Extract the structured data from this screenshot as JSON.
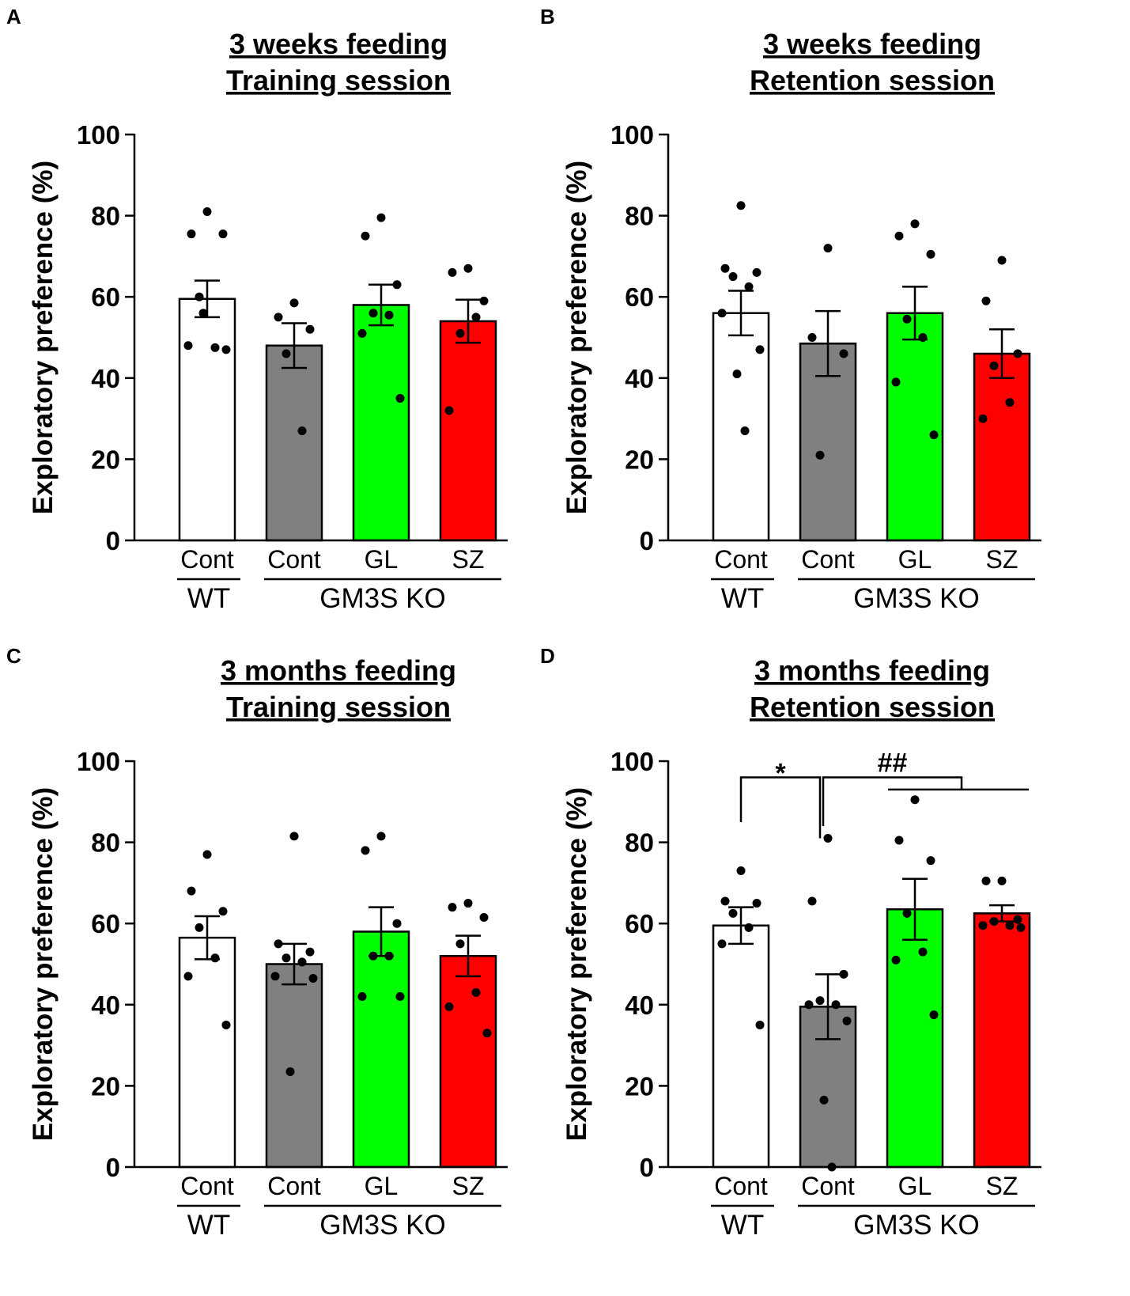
{
  "chart_data": [
    {
      "type": "bar",
      "panel": "A",
      "title": [
        "3 weeks feeding",
        "Training session"
      ],
      "ylabel": "Exploratory preference (%)",
      "ylim": [
        0,
        100
      ],
      "yticks": [
        "0",
        "20",
        "40",
        "60",
        "80",
        "100"
      ],
      "categories": [
        "Cont",
        "Cont",
        "GL",
        "SZ"
      ],
      "groups": [
        {
          "label": "WT",
          "span": [
            0,
            0
          ]
        },
        {
          "label": "GM3S KO",
          "span": [
            1,
            3
          ]
        }
      ],
      "colors": [
        "#ffffff",
        "#808080",
        "#00ff00",
        "#ff0000"
      ],
      "means": [
        59.5,
        48,
        58,
        54
      ],
      "sem": [
        4.5,
        5.5,
        5,
        5.3
      ],
      "points": [
        [
          81,
          75.5,
          75.5,
          60,
          47.5,
          48,
          47,
          56
        ],
        [
          58.5,
          55,
          52,
          46,
          27
        ],
        [
          79.5,
          75,
          63,
          56,
          55.5,
          51,
          35
        ],
        [
          67,
          66,
          59,
          51,
          55,
          32
        ]
      ],
      "annotations": []
    },
    {
      "type": "bar",
      "panel": "B",
      "title": [
        "3 weeks feeding",
        "Retention session"
      ],
      "ylabel": "Exploratory preference (%)",
      "ylim": [
        0,
        100
      ],
      "yticks": [
        "0",
        "20",
        "40",
        "60",
        "80",
        "100"
      ],
      "categories": [
        "Cont",
        "Cont",
        "GL",
        "SZ"
      ],
      "groups": [
        {
          "label": "WT",
          "span": [
            0,
            0
          ]
        },
        {
          "label": "GM3S KO",
          "span": [
            1,
            3
          ]
        }
      ],
      "colors": [
        "#ffffff",
        "#808080",
        "#00ff00",
        "#ff0000"
      ],
      "means": [
        56,
        48.5,
        56,
        46
      ],
      "sem": [
        5.5,
        8,
        6.5,
        6
      ],
      "points": [
        [
          82.5,
          67,
          66,
          65,
          62.5,
          56,
          47,
          41,
          27
        ],
        [
          72,
          50,
          46,
          21
        ],
        [
          78,
          75,
          70.5,
          54.5,
          50,
          39,
          26
        ],
        [
          69,
          59,
          46,
          43,
          34,
          30
        ]
      ],
      "annotations": []
    },
    {
      "type": "bar",
      "panel": "C",
      "title": [
        "3 months feeding",
        "Training session"
      ],
      "ylabel": "Exploratory preference (%)",
      "ylim": [
        0,
        100
      ],
      "yticks": [
        "0",
        "20",
        "40",
        "60",
        "80",
        "100"
      ],
      "categories": [
        "Cont",
        "Cont",
        "GL",
        "SZ"
      ],
      "groups": [
        {
          "label": "WT",
          "span": [
            0,
            0
          ]
        },
        {
          "label": "GM3S KO",
          "span": [
            1,
            3
          ]
        }
      ],
      "colors": [
        "#ffffff",
        "#808080",
        "#00ff00",
        "#ff0000"
      ],
      "means": [
        56.5,
        50,
        58,
        52
      ],
      "sem": [
        5.3,
        5,
        6,
        5
      ],
      "points": [
        [
          77,
          68,
          63,
          59,
          51.5,
          47,
          35
        ],
        [
          81.5,
          55,
          53,
          51.5,
          50.5,
          47,
          46.5,
          23.5
        ],
        [
          81.5,
          78,
          60,
          52,
          52,
          42,
          42
        ],
        [
          65,
          64,
          61.5,
          55,
          43,
          39.5,
          33
        ]
      ],
      "annotations": []
    },
    {
      "type": "bar",
      "panel": "D",
      "title": [
        "3 months feeding",
        "Retention session"
      ],
      "ylabel": "Exploratory preference (%)",
      "ylim": [
        0,
        100
      ],
      "yticks": [
        "0",
        "20",
        "40",
        "60",
        "80",
        "100"
      ],
      "categories": [
        "Cont",
        "Cont",
        "GL",
        "SZ"
      ],
      "groups": [
        {
          "label": "WT",
          "span": [
            0,
            0
          ]
        },
        {
          "label": "GM3S KO",
          "span": [
            1,
            3
          ]
        }
      ],
      "colors": [
        "#ffffff",
        "#808080",
        "#00ff00",
        "#ff0000"
      ],
      "means": [
        59.5,
        39.5,
        63.5,
        62.5
      ],
      "sem": [
        4.5,
        8,
        7.5,
        2
      ],
      "points": [
        [
          73,
          65.5,
          65,
          62.5,
          59,
          55,
          35
        ],
        [
          81,
          65.5,
          47.5,
          41,
          40,
          40,
          36,
          16.5,
          0
        ],
        [
          90.5,
          80.5,
          75.5,
          62.5,
          53,
          51,
          37.5
        ],
        [
          70.5,
          70.5,
          61,
          60.5,
          59.5,
          59.5,
          59
        ]
      ],
      "annotations": [
        {
          "label": "*",
          "bracket": [
            0,
            1
          ],
          "y": 96
        },
        {
          "label": "##",
          "bracket": [
            1,
            [
              2,
              3
            ]
          ],
          "y": 96
        }
      ]
    }
  ]
}
